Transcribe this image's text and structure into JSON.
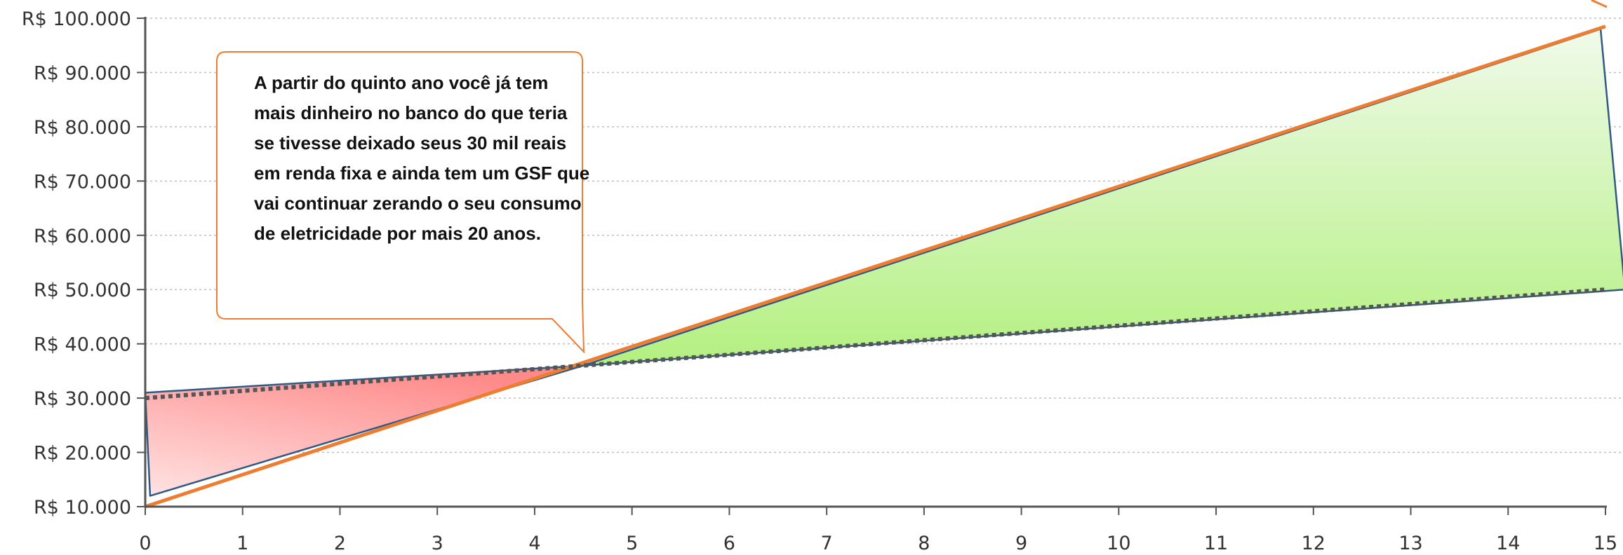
{
  "chart_data": {
    "type": "line",
    "title": "",
    "xlabel": "",
    "ylabel": "",
    "x": [
      0,
      15
    ],
    "xlim": [
      0,
      15
    ],
    "ylim": [
      10000,
      100000
    ],
    "x_ticks": [
      "0",
      "1",
      "2",
      "3",
      "4",
      "5",
      "6",
      "7",
      "8",
      "9",
      "10",
      "11",
      "12",
      "13",
      "14",
      "15"
    ],
    "y_ticks": [
      "R$ 10.000",
      "R$ 20.000",
      "R$ 30.000",
      "R$ 40.000",
      "R$ 50.000",
      "R$ 60.000",
      "R$ 70.000",
      "R$ 80.000",
      "R$ 90.000",
      "R$ 100.000"
    ],
    "y_tick_values": [
      10000,
      20000,
      30000,
      40000,
      50000,
      60000,
      70000,
      80000,
      90000,
      100000
    ],
    "grid": "horizontal dotted",
    "series": [
      {
        "x": [
          0,
          15
        ],
        "values": [
          10000,
          98500
        ],
        "style": "solid",
        "color": "#ED7D31"
      },
      {
        "x": [
          0,
          15
        ],
        "values": [
          30000,
          50000
        ],
        "style": "dotted",
        "color": "#555555"
      }
    ],
    "areas": [
      {
        "polygon": [
          [
            0,
            31000
          ],
          [
            0.05,
            12000
          ],
          [
            4.5,
            36000
          ]
        ],
        "color": "#FF8080",
        "meaning": "loss"
      },
      {
        "polygon": [
          [
            4.5,
            36000
          ],
          [
            14.95,
            98000
          ],
          [
            15.2,
            50000
          ]
        ],
        "color": "#92E65A",
        "meaning": "gain"
      }
    ],
    "annotations": [
      {
        "lines": [
          "A partir do quinto ano você já tem",
          "mais dinheiro no banco do que teria",
          "se tivesse deixado seus 30 mil reais",
          "em renda fixa e ainda tem um GSF que",
          "vai continuar zerando o seu consumo",
          "de eletricidade por mais 20 anos."
        ]
      }
    ],
    "colors": {
      "accent": "#ED7D31",
      "outline": "#2F5A86",
      "axis": "#555555",
      "grid": "#BFBFBF"
    }
  }
}
